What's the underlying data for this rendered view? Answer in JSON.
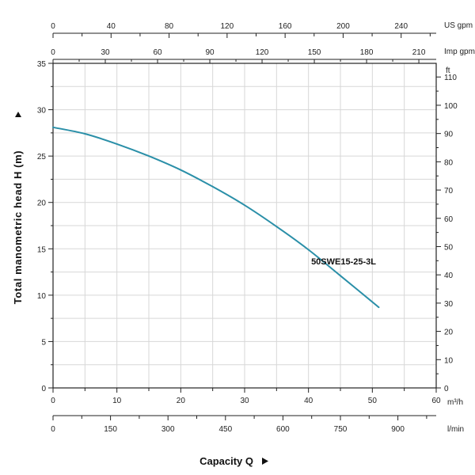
{
  "chart_data": {
    "type": "line",
    "xlabel": "Capacity Q",
    "ylabel": "Total manometric head H (m)",
    "x_unit": "m³/h",
    "xlim": [
      0,
      60
    ],
    "ylim": [
      0,
      35
    ],
    "grid": true,
    "series": [
      {
        "name": "50SWE15-25-3L",
        "color": "#2a8fa8",
        "x": [
          0,
          5,
          10,
          15,
          20,
          25,
          30,
          35,
          40,
          45,
          51
        ],
        "y": [
          28.1,
          27.4,
          26.3,
          25.0,
          23.5,
          21.7,
          19.7,
          17.4,
          14.9,
          12.1,
          8.7
        ]
      }
    ],
    "x_ticks": [
      "0",
      "10",
      "20",
      "30",
      "40",
      "50",
      "60"
    ],
    "y_ticks": [
      "0",
      "5",
      "10",
      "15",
      "20",
      "25",
      "30",
      "35"
    ],
    "secondary_axes": {
      "us_gpm": {
        "label": "US gpm",
        "ticks": [
          "0",
          "40",
          "80",
          "120",
          "160",
          "200",
          "240"
        ]
      },
      "imp_gpm": {
        "label": "Imp gpm",
        "ticks": [
          "0",
          "30",
          "60",
          "90",
          "120",
          "150",
          "180",
          "210"
        ]
      },
      "lpm": {
        "label": "l/min",
        "ticks": [
          "0",
          "150",
          "300",
          "450",
          "600",
          "750",
          "900"
        ]
      },
      "ft": {
        "label": "ft",
        "ticks": [
          "0",
          "10",
          "20",
          "30",
          "40",
          "50",
          "60",
          "70",
          "80",
          "90",
          "100",
          "110"
        ]
      }
    }
  }
}
